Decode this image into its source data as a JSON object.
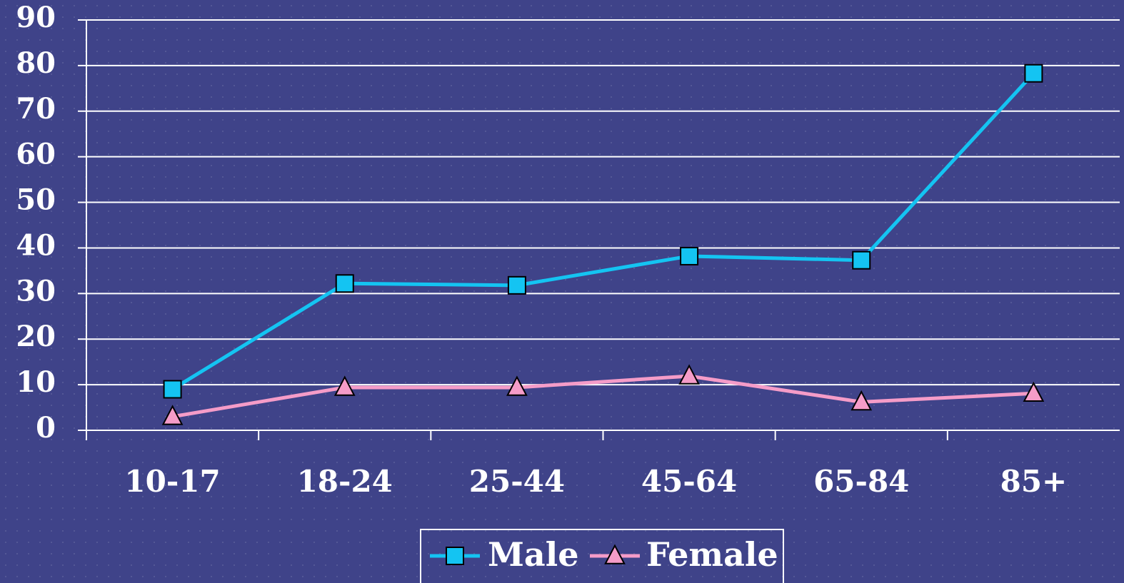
{
  "chart_data": {
    "type": "line",
    "categories": [
      "10-17",
      "18-24",
      "25-44",
      "45-64",
      "65-84",
      "85+"
    ],
    "series": [
      {
        "name": "Male",
        "color": "#14c4f2",
        "marker": "square",
        "values": [
          9,
          32.2,
          31.8,
          38.2,
          37.3,
          78.3
        ]
      },
      {
        "name": "Female",
        "color": "#f59cc8",
        "marker": "triangle",
        "values": [
          3,
          9.4,
          9.4,
          11.9,
          6.2,
          8.1
        ]
      }
    ],
    "ylim": [
      0,
      90
    ],
    "yticks": [
      0,
      10,
      20,
      30,
      40,
      50,
      60,
      70,
      80,
      90
    ],
    "grid": true,
    "legend": "bottom"
  }
}
